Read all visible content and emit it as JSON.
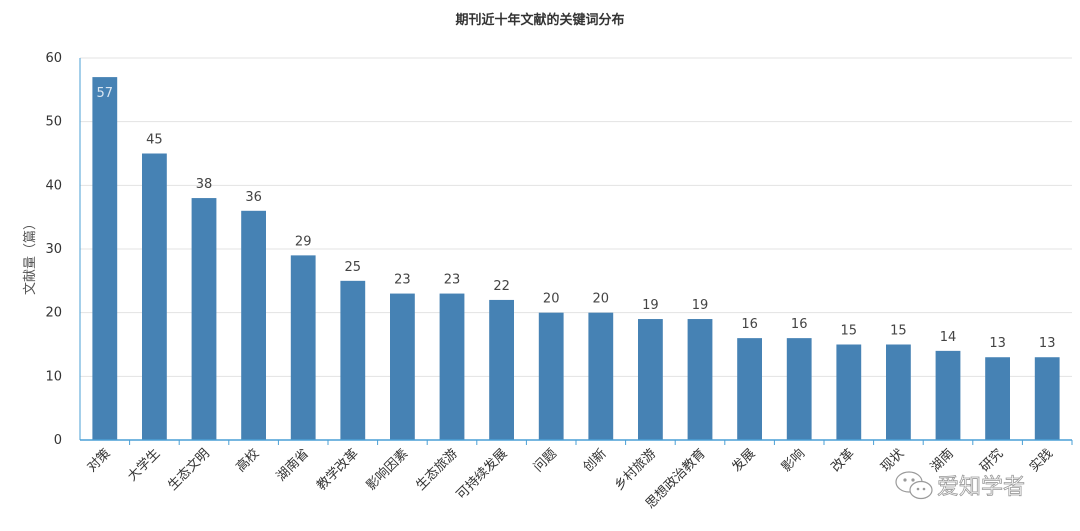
{
  "chart_data": {
    "type": "bar",
    "title": "期刊近十年文献的关键词分布",
    "ylabel": "文献量（篇）",
    "xlabel": "",
    "ylim": [
      0,
      60
    ],
    "yticks": [
      0,
      10,
      20,
      30,
      40,
      50,
      60
    ],
    "grid": true,
    "categories": [
      "对策",
      "大学生",
      "生态文明",
      "高校",
      "湖南省",
      "教学改革",
      "影响因素",
      "生态旅游",
      "可持续发展",
      "问题",
      "创新",
      "乡村旅游",
      "思想政治教育",
      "发展",
      "影响",
      "改革",
      "现状",
      "湖南",
      "研究",
      "实践"
    ],
    "values": [
      57,
      45,
      38,
      36,
      29,
      25,
      23,
      23,
      22,
      20,
      20,
      19,
      19,
      16,
      16,
      15,
      15,
      14,
      13,
      13
    ],
    "bar_color": "#4682b4"
  },
  "watermark": {
    "text": "爱知学者",
    "icon": "wechat-icon"
  }
}
